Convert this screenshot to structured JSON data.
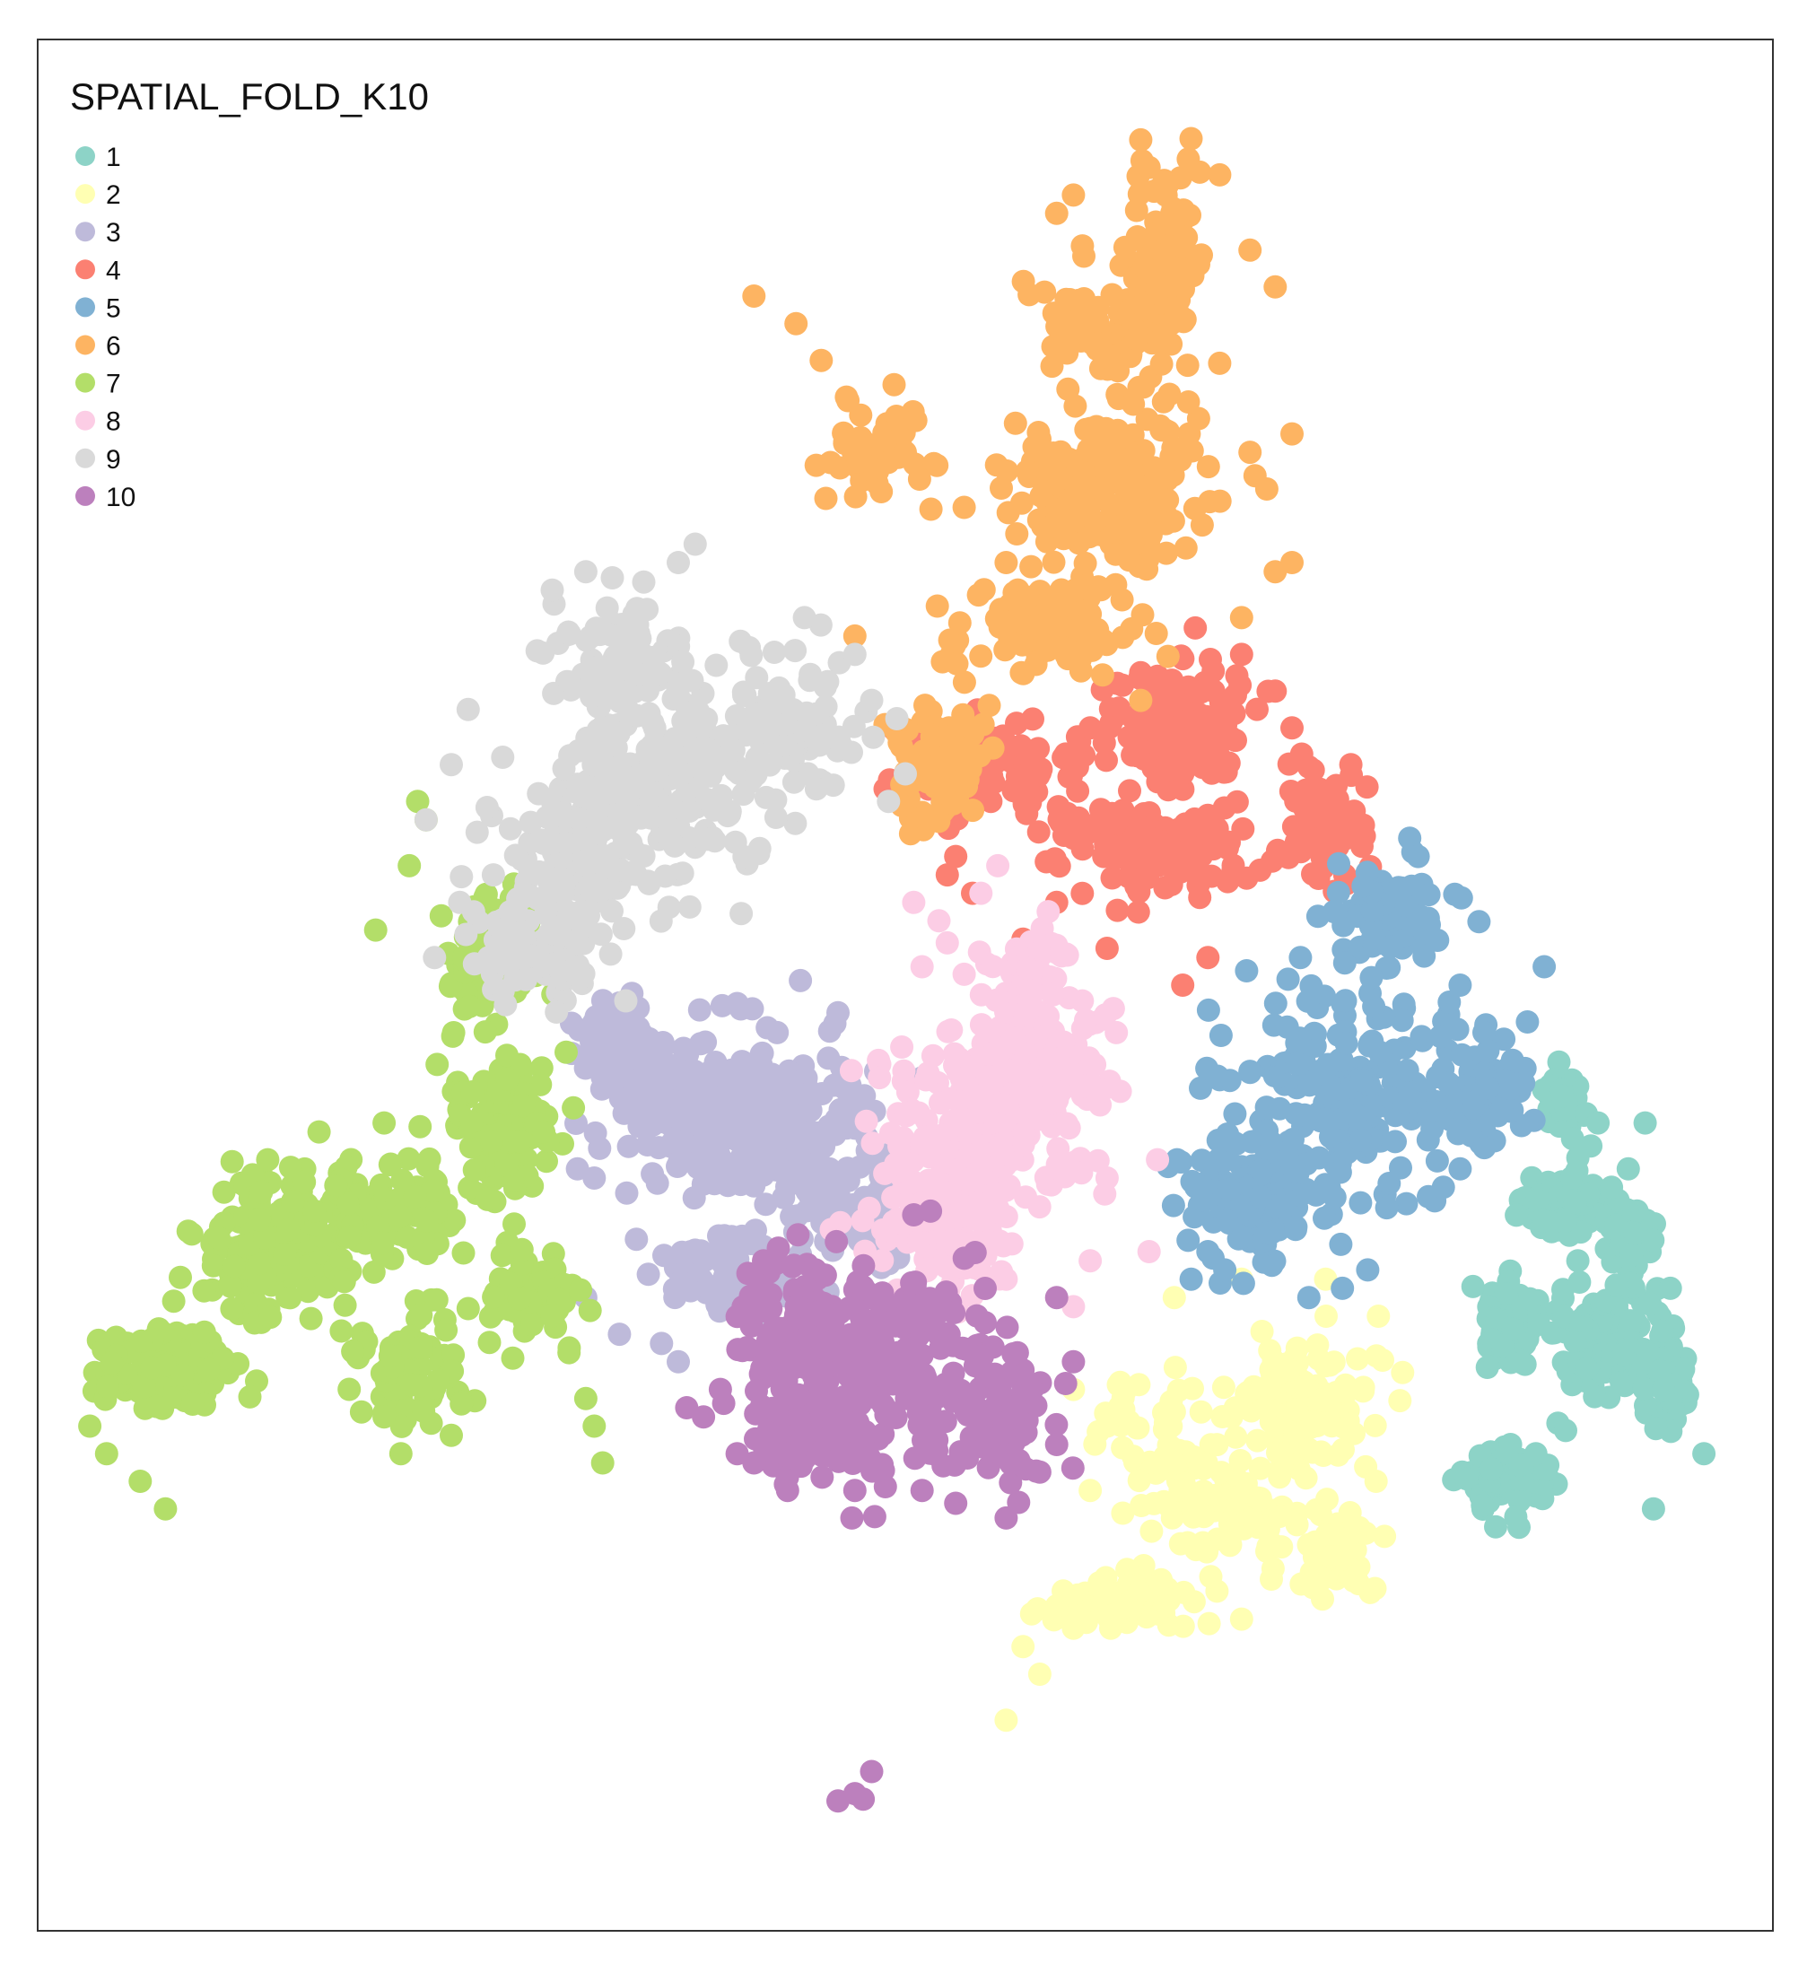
{
  "chart_data": {
    "type": "scatter",
    "title": "",
    "xlabel": "",
    "ylabel": "",
    "xlim": [
      0,
      1000
    ],
    "ylim": [
      0,
      1000
    ],
    "grid": false,
    "legend": {
      "title": "SPATIAL_FOLD_K10",
      "placement": "top-left"
    },
    "series": [
      {
        "name": "1",
        "color": "#8DD3C7",
        "blobs": [
          {
            "cx": 892,
            "cy": 380,
            "rx": 22,
            "ry": 14,
            "n": 120
          },
          {
            "cx": 860,
            "cy": 315,
            "rx": 14,
            "ry": 20,
            "n": 80
          },
          {
            "cx": 912,
            "cy": 300,
            "rx": 22,
            "ry": 24,
            "n": 110
          },
          {
            "cx": 950,
            "cy": 290,
            "rx": 14,
            "ry": 28,
            "n": 70
          },
          {
            "cx": 860,
            "cy": 230,
            "rx": 24,
            "ry": 18,
            "n": 60
          },
          {
            "cx": 930,
            "cy": 360,
            "rx": 14,
            "ry": 26,
            "n": 50
          },
          {
            "cx": 890,
            "cy": 435,
            "rx": 12,
            "ry": 22,
            "n": 40
          }
        ],
        "scatter": [
          [
            900,
            406
          ],
          [
            930,
            400
          ],
          [
            940,
            425
          ],
          [
            920,
            390
          ],
          [
            955,
            335
          ],
          [
            865,
            205
          ],
          [
            945,
            215
          ],
          [
            975,
            245
          ],
          [
            875,
            245
          ],
          [
            860,
            250
          ],
          [
            905,
            430
          ],
          [
            912,
            425
          ],
          [
            900,
            350
          ]
        ]
      },
      {
        "name": "2",
        "color": "#FFFFB3",
        "blobs": [
          {
            "cx": 735,
            "cy": 275,
            "rx": 38,
            "ry": 28,
            "n": 130
          },
          {
            "cx": 690,
            "cy": 215,
            "rx": 38,
            "ry": 28,
            "n": 100
          },
          {
            "cx": 630,
            "cy": 165,
            "rx": 38,
            "ry": 14,
            "n": 80
          },
          {
            "cx": 760,
            "cy": 190,
            "rx": 20,
            "ry": 25,
            "n": 45
          },
          {
            "cx": 650,
            "cy": 260,
            "rx": 24,
            "ry": 28,
            "n": 45
          }
        ],
        "scatter": [
          [
            570,
            140
          ],
          [
            580,
            125
          ],
          [
            560,
            100
          ],
          [
            600,
            150
          ],
          [
            660,
            330
          ],
          [
            700,
            340
          ],
          [
            750,
            340
          ],
          [
            620,
            260
          ],
          [
            610,
            225
          ],
          [
            600,
            280
          ],
          [
            780,
            230
          ],
          [
            785,
            200
          ],
          [
            700,
            155
          ]
        ]
      },
      {
        "name": "3",
        "color": "#BEBADA",
        "blobs": [
          {
            "cx": 430,
            "cy": 425,
            "rx": 50,
            "ry": 50,
            "n": 180
          },
          {
            "cx": 365,
            "cy": 440,
            "rx": 45,
            "ry": 40,
            "n": 130
          },
          {
            "cx": 330,
            "cy": 470,
            "rx": 22,
            "ry": 22,
            "n": 60
          },
          {
            "cx": 390,
            "cy": 345,
            "rx": 40,
            "ry": 24,
            "n": 70
          },
          {
            "cx": 470,
            "cy": 380,
            "rx": 30,
            "ry": 30,
            "n": 60
          }
        ],
        "scatter": [
          [
            305,
            400
          ],
          [
            315,
            395
          ],
          [
            355,
            305
          ],
          [
            365,
            295
          ],
          [
            420,
            300
          ],
          [
            310,
            330
          ],
          [
            330,
            310
          ],
          [
            455,
            475
          ],
          [
            460,
            485
          ],
          [
            400,
            490
          ]
        ]
      },
      {
        "name": "4",
        "color": "#FB8072",
        "blobs": [
          {
            "cx": 660,
            "cy": 640,
            "rx": 36,
            "ry": 34,
            "n": 170
          },
          {
            "cx": 650,
            "cy": 575,
            "rx": 55,
            "ry": 22,
            "n": 130
          },
          {
            "cx": 560,
            "cy": 615,
            "rx": 45,
            "ry": 25,
            "n": 90
          },
          {
            "cx": 745,
            "cy": 590,
            "rx": 24,
            "ry": 28,
            "n": 60
          }
        ],
        "scatter": [
          [
            530,
            570
          ],
          [
            525,
            560
          ],
          [
            540,
            550
          ],
          [
            570,
            525
          ],
          [
            590,
            545
          ],
          [
            620,
            520
          ],
          [
            665,
            500
          ],
          [
            680,
            515
          ],
          [
            700,
            680
          ],
          [
            720,
            660
          ],
          [
            730,
            640
          ],
          [
            765,
            620
          ],
          [
            750,
            605
          ],
          [
            600,
            580
          ],
          [
            640,
            670
          ],
          [
            610,
            640
          ]
        ]
      },
      {
        "name": "5",
        "color": "#80B1D3",
        "blobs": [
          {
            "cx": 760,
            "cy": 440,
            "rx": 60,
            "ry": 55,
            "n": 210
          },
          {
            "cx": 705,
            "cy": 380,
            "rx": 40,
            "ry": 30,
            "n": 100
          },
          {
            "cx": 790,
            "cy": 535,
            "rx": 32,
            "ry": 24,
            "n": 80
          },
          {
            "cx": 845,
            "cy": 440,
            "rx": 24,
            "ry": 24,
            "n": 60
          }
        ],
        "scatter": [
          [
            800,
            580
          ],
          [
            805,
            570
          ],
          [
            755,
            540
          ],
          [
            880,
            510
          ],
          [
            870,
            480
          ],
          [
            830,
            500
          ],
          [
            735,
            515
          ],
          [
            670,
            340
          ],
          [
            680,
            355
          ],
          [
            690,
            345
          ],
          [
            740,
            330
          ],
          [
            760,
            335
          ],
          [
            775,
            345
          ],
          [
            820,
            390
          ],
          [
            830,
            400
          ]
        ]
      },
      {
        "name": "6",
        "color": "#FDB462",
        "blobs": [
          {
            "cx": 620,
            "cy": 770,
            "rx": 55,
            "ry": 38,
            "n": 190
          },
          {
            "cx": 580,
            "cy": 695,
            "rx": 50,
            "ry": 22,
            "n": 110
          },
          {
            "cx": 655,
            "cy": 890,
            "rx": 20,
            "ry": 50,
            "n": 110
          },
          {
            "cx": 615,
            "cy": 860,
            "rx": 28,
            "ry": 30,
            "n": 70
          },
          {
            "cx": 520,
            "cy": 620,
            "rx": 25,
            "ry": 35,
            "n": 80
          },
          {
            "cx": 480,
            "cy": 790,
            "rx": 25,
            "ry": 30,
            "n": 55
          }
        ],
        "scatter": [
          [
            410,
            875
          ],
          [
            435,
            860
          ],
          [
            450,
            840
          ],
          [
            465,
            820
          ],
          [
            500,
            790
          ],
          [
            535,
            760
          ],
          [
            560,
            730
          ],
          [
            590,
            920
          ],
          [
            600,
            930
          ],
          [
            640,
            960
          ],
          [
            645,
            945
          ],
          [
            705,
            900
          ],
          [
            720,
            880
          ],
          [
            730,
            800
          ],
          [
            705,
            790
          ],
          [
            715,
            770
          ],
          [
            470,
            690
          ],
          [
            640,
            655
          ],
          [
            700,
            700
          ],
          [
            720,
            725
          ],
          [
            730,
            730
          ]
        ]
      },
      {
        "name": "7",
        "color": "#B3DE69",
        "blobs": [
          {
            "cx": 120,
            "cy": 355,
            "rx": 40,
            "ry": 32,
            "n": 140
          },
          {
            "cx": 60,
            "cy": 290,
            "rx": 35,
            "ry": 24,
            "n": 100
          },
          {
            "cx": 185,
            "cy": 375,
            "rx": 55,
            "ry": 30,
            "n": 110
          },
          {
            "cx": 210,
            "cy": 290,
            "rx": 35,
            "ry": 28,
            "n": 80
          },
          {
            "cx": 260,
            "cy": 430,
            "rx": 30,
            "ry": 38,
            "n": 110
          },
          {
            "cx": 250,
            "cy": 515,
            "rx": 26,
            "ry": 30,
            "n": 70
          },
          {
            "cx": 280,
            "cy": 330,
            "rx": 25,
            "ry": 25,
            "n": 50
          }
        ],
        "scatter": [
          [
            15,
            260
          ],
          [
            25,
            245
          ],
          [
            45,
            230
          ],
          [
            60,
            215
          ],
          [
            190,
            265
          ],
          [
            200,
            245
          ],
          [
            205,
            565
          ],
          [
            215,
            590
          ],
          [
            210,
            600
          ],
          [
            185,
            530
          ],
          [
            190,
            425
          ],
          [
            290,
            320
          ],
          [
            300,
            300
          ],
          [
            310,
            275
          ],
          [
            315,
            260
          ],
          [
            320,
            240
          ],
          [
            285,
            420
          ],
          [
            230,
            255
          ]
        ]
      },
      {
        "name": "8",
        "color": "#FCCDE5",
        "blobs": [
          {
            "cx": 545,
            "cy": 415,
            "rx": 55,
            "ry": 50,
            "n": 200
          },
          {
            "cx": 580,
            "cy": 465,
            "rx": 35,
            "ry": 40,
            "n": 110
          },
          {
            "cx": 520,
            "cy": 365,
            "rx": 40,
            "ry": 35,
            "n": 90
          },
          {
            "cx": 575,
            "cy": 510,
            "rx": 25,
            "ry": 20,
            "n": 50
          }
        ],
        "scatter": [
          [
            510,
            510
          ],
          [
            505,
            545
          ],
          [
            545,
            550
          ],
          [
            555,
            565
          ],
          [
            585,
            540
          ],
          [
            560,
            340
          ],
          [
            600,
            325
          ],
          [
            610,
            350
          ],
          [
            645,
            355
          ],
          [
            620,
            395
          ],
          [
            650,
            405
          ],
          [
            520,
            535
          ],
          [
            525,
            523
          ]
        ]
      },
      {
        "name": "9",
        "color": "#D9D9D9",
        "blobs": [
          {
            "cx": 350,
            "cy": 610,
            "rx": 60,
            "ry": 50,
            "n": 210
          },
          {
            "cx": 300,
            "cy": 560,
            "rx": 40,
            "ry": 40,
            "n": 110
          },
          {
            "cx": 330,
            "cy": 680,
            "rx": 40,
            "ry": 30,
            "n": 90
          },
          {
            "cx": 430,
            "cy": 640,
            "rx": 45,
            "ry": 35,
            "n": 100
          },
          {
            "cx": 280,
            "cy": 515,
            "rx": 35,
            "ry": 24,
            "n": 70
          }
        ],
        "scatter": [
          [
            255,
            560
          ],
          [
            265,
            540
          ],
          [
            235,
            545
          ],
          [
            220,
            515
          ],
          [
            215,
            590
          ],
          [
            230,
            620
          ],
          [
            240,
            650
          ],
          [
            290,
            715
          ],
          [
            310,
            725
          ],
          [
            365,
            730
          ],
          [
            375,
            740
          ],
          [
            440,
            700
          ],
          [
            470,
            680
          ],
          [
            480,
            655
          ],
          [
            495,
            645
          ],
          [
            500,
            615
          ],
          [
            490,
            600
          ]
        ]
      },
      {
        "name": "10",
        "color": "#BC80BD",
        "blobs": [
          {
            "cx": 490,
            "cy": 290,
            "rx": 50,
            "ry": 50,
            "n": 200
          },
          {
            "cx": 430,
            "cy": 320,
            "rx": 30,
            "ry": 35,
            "n": 90
          },
          {
            "cx": 440,
            "cy": 260,
            "rx": 30,
            "ry": 24,
            "n": 80
          },
          {
            "cx": 560,
            "cy": 260,
            "rx": 25,
            "ry": 35,
            "n": 70
          }
        ],
        "scatter": [
          [
            380,
            265
          ],
          [
            370,
            270
          ],
          [
            390,
            280
          ],
          [
            400,
            245
          ],
          [
            410,
            240
          ],
          [
            430,
            225
          ],
          [
            470,
            225
          ],
          [
            510,
            225
          ],
          [
            530,
            218
          ],
          [
            560,
            210
          ],
          [
            580,
            235
          ],
          [
            590,
            250
          ],
          [
            600,
            295
          ],
          [
            590,
            330
          ],
          [
            505,
            375
          ],
          [
            515,
            377
          ],
          [
            470,
            60
          ],
          [
            480,
            72
          ],
          [
            460,
            56
          ],
          [
            475,
            57
          ]
        ]
      }
    ]
  }
}
